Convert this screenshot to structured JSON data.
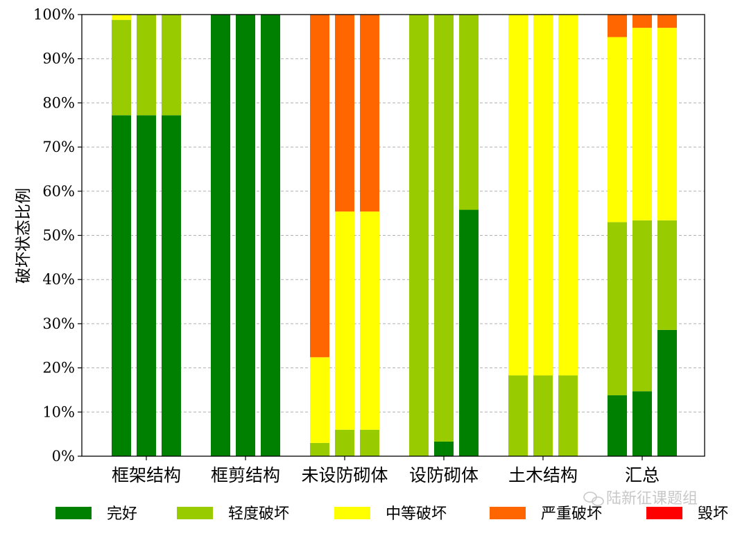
{
  "chart_data": {
    "type": "bar",
    "stacked": true,
    "ylabel": "破坏状态比例",
    "xlabel": "",
    "title": "",
    "ylim": [
      0,
      100
    ],
    "yticks": [
      "0%",
      "10%",
      "20%",
      "30%",
      "40%",
      "50%",
      "60%",
      "70%",
      "80%",
      "90%",
      "100%"
    ],
    "grid": "y-dashed",
    "legend_position": "bottom",
    "categories": [
      "框架结构",
      "框剪结构",
      "未设防砌体",
      "设防砌体",
      "土木结构",
      "汇总"
    ],
    "bars_per_category": 3,
    "series": [
      {
        "name": "完好",
        "color": "#008000",
        "values": [
          [
            77.2,
            77.2,
            77.2
          ],
          [
            100,
            100,
            100
          ],
          [
            0,
            0,
            0
          ],
          [
            0,
            3.3,
            55.8
          ],
          [
            0,
            0,
            0
          ],
          [
            13.8,
            14.7,
            28.6
          ]
        ]
      },
      {
        "name": "轻度破坏",
        "color": "#99cc00",
        "values": [
          [
            21.6,
            22.8,
            22.8
          ],
          [
            0,
            0,
            0
          ],
          [
            3.0,
            6.0,
            6.0
          ],
          [
            100,
            96.7,
            44.2
          ],
          [
            18.3,
            18.3,
            18.3
          ],
          [
            39.2,
            38.7,
            24.8
          ]
        ]
      },
      {
        "name": "中等破坏",
        "color": "#ffff00",
        "values": [
          [
            1.2,
            0,
            0
          ],
          [
            0,
            0,
            0
          ],
          [
            19.4,
            49.4,
            49.4
          ],
          [
            0,
            0,
            0
          ],
          [
            81.7,
            81.7,
            81.7
          ],
          [
            41.9,
            43.6,
            43.6
          ]
        ]
      },
      {
        "name": "严重破坏",
        "color": "#ff6600",
        "values": [
          [
            0,
            0,
            0
          ],
          [
            0,
            0,
            0
          ],
          [
            77.6,
            44.6,
            44.6
          ],
          [
            0,
            0,
            0
          ],
          [
            0,
            0,
            0
          ],
          [
            5.1,
            3.0,
            3.0
          ]
        ]
      },
      {
        "name": "毁坏",
        "color": "#ff0000",
        "values": [
          [
            0,
            0,
            0
          ],
          [
            0,
            0,
            0
          ],
          [
            0,
            0,
            0
          ],
          [
            0,
            0,
            0
          ],
          [
            0,
            0,
            0
          ],
          [
            0,
            0,
            0
          ]
        ]
      }
    ]
  },
  "watermark": "陆新征课题组"
}
